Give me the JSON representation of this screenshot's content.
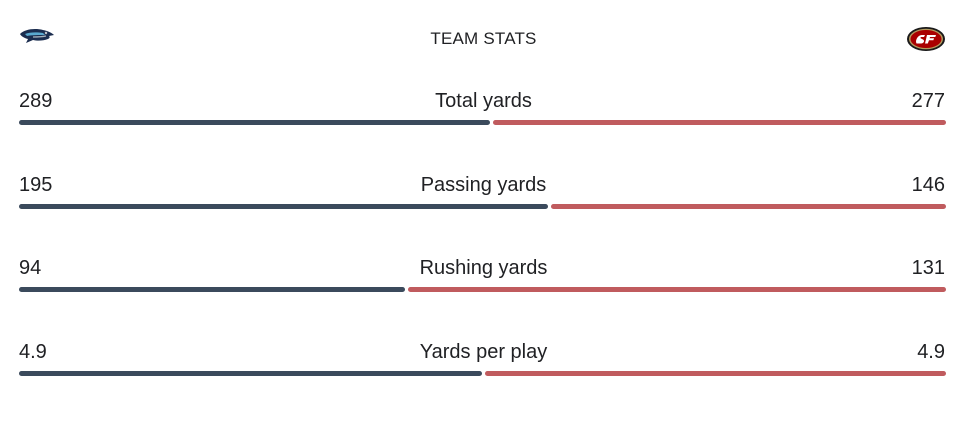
{
  "header": {
    "title": "TEAM STATS",
    "left_team_logo": "seahawks-logo",
    "right_team_logo": "49ers-logo"
  },
  "colors": {
    "left_team": "#3b4a5c",
    "right_team": "#c05b5e"
  },
  "stats": [
    {
      "label": "Total yards",
      "left_value": "289",
      "right_value": "277",
      "left_share": 0.509
    },
    {
      "label": "Passing yards",
      "left_value": "195",
      "right_value": "146",
      "left_share": 0.5716
    },
    {
      "label": "Rushing yards",
      "left_value": "94",
      "right_value": "131",
      "left_share": 0.4178
    },
    {
      "label": "Yards per play",
      "left_value": "4.9",
      "right_value": "4.9",
      "left_share": 0.5
    }
  ]
}
